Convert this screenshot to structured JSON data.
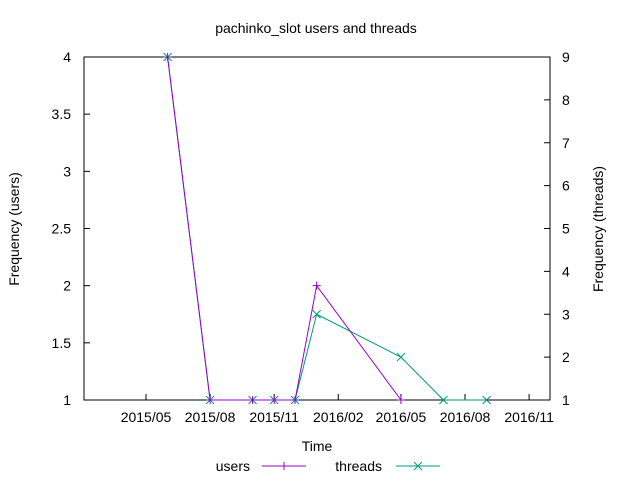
{
  "chart_data": {
    "type": "line",
    "title": "pachinko_slot users and threads",
    "xlabel": "Time",
    "ylabel": "Frequency (users)",
    "y2label": "Frequency (threads)",
    "xlim": [
      "2015-02-01",
      "2016-12-01"
    ],
    "ylim": [
      1,
      4
    ],
    "y2lim": [
      1,
      9
    ],
    "x_ticks": [
      "2015/05",
      "2015/08",
      "2015/11",
      "2016/02",
      "2016/05",
      "2016/08",
      "2016/11"
    ],
    "x_tick_dates": [
      "2015-05-01",
      "2015-08-01",
      "2015-11-01",
      "2016-02-01",
      "2016-05-01",
      "2016-08-01",
      "2016-11-01"
    ],
    "y_ticks": [
      "1",
      "1.5",
      "2",
      "2.5",
      "3",
      "3.5",
      "4"
    ],
    "y2_ticks": [
      "1",
      "2",
      "3",
      "4",
      "5",
      "6",
      "7",
      "8",
      "9"
    ],
    "grid": false,
    "legend": "bottom",
    "series": [
      {
        "name": "users",
        "axis": "y",
        "color": "#9400d3",
        "marker": "plus",
        "points": [
          {
            "x": "2015-06-01",
            "y": 4
          },
          {
            "x": "2015-08-01",
            "y": 1
          },
          {
            "x": "2015-10-01",
            "y": 1
          },
          {
            "x": "2015-11-01",
            "y": 1
          },
          {
            "x": "2015-12-01",
            "y": 1
          },
          {
            "x": "2016-01-01",
            "y": 2
          },
          {
            "x": "2016-05-01",
            "y": 1
          }
        ]
      },
      {
        "name": "threads",
        "axis": "y2",
        "color": "#009e73",
        "marker": "cross",
        "points": [
          {
            "x": "2015-06-01",
            "y": 9
          },
          {
            "x": "2015-08-01",
            "y": 1
          },
          {
            "x": "2015-10-01",
            "y": 1
          },
          {
            "x": "2015-11-01",
            "y": 1
          },
          {
            "x": "2015-12-01",
            "y": 1
          },
          {
            "x": "2016-01-01",
            "y": 3
          },
          {
            "x": "2016-05-01",
            "y": 2
          },
          {
            "x": "2016-07-01",
            "y": 1
          },
          {
            "x": "2016-09-01",
            "y": 1
          }
        ]
      }
    ]
  }
}
